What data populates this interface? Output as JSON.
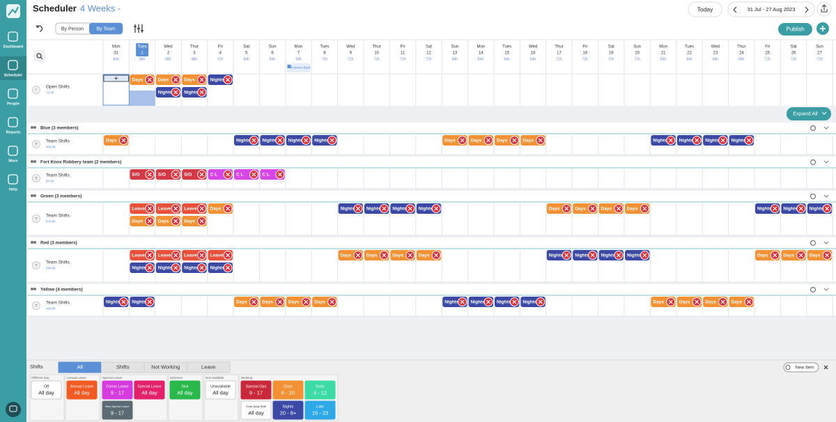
{
  "sidebar": [
    "Dashboard",
    "Scheduler",
    "People",
    "Reports",
    "More",
    "Help"
  ],
  "sidebar_active": 1,
  "header": {
    "title": "Scheduler",
    "view": "4 Weeks -",
    "today": "Today",
    "range": "31 Jul - 27 Aug 2023"
  },
  "toolbar": {
    "by_person": "By Person",
    "by_team": "By Team",
    "publish": "Publish"
  },
  "days": [
    {
      "weekday": "Mon",
      "date": 31,
      "hours": "84h"
    },
    {
      "weekday": "Tues",
      "date": 1,
      "hours": "88h",
      "today": true
    },
    {
      "weekday": "Wed",
      "date": 2,
      "hours": "88h"
    },
    {
      "weekday": "Thur",
      "date": 3,
      "hours": "88h"
    },
    {
      "weekday": "Fri",
      "date": 4,
      "hours": "72h"
    },
    {
      "weekday": "Sat",
      "date": 5,
      "hours": "84h"
    },
    {
      "weekday": "Sun",
      "date": 6,
      "hours": "84h"
    },
    {
      "weekday": "Mon",
      "date": 7,
      "hours": "84h",
      "holiday": "Summer Bank"
    },
    {
      "weekday": "Tues",
      "date": 8,
      "hours": "72h"
    },
    {
      "weekday": "Wed",
      "date": 9,
      "hours": "72h"
    },
    {
      "weekday": "Thur",
      "date": 10,
      "hours": "72h"
    },
    {
      "weekday": "Fri",
      "date": 11,
      "hours": "72h"
    },
    {
      "weekday": "Sat",
      "date": 12,
      "hours": "72h"
    },
    {
      "weekday": "Sun",
      "date": 13,
      "hours": "84h"
    },
    {
      "weekday": "Mon",
      "date": 14,
      "hours": "84h"
    },
    {
      "weekday": "Tues",
      "date": 15,
      "hours": "84h"
    },
    {
      "weekday": "Wed",
      "date": 16,
      "hours": "84h"
    },
    {
      "weekday": "Thur",
      "date": 17,
      "hours": "72h"
    },
    {
      "weekday": "Fri",
      "date": 18,
      "hours": "72h"
    },
    {
      "weekday": "Sat",
      "date": 19,
      "hours": "72h"
    },
    {
      "weekday": "Sun",
      "date": 20,
      "hours": "72h"
    },
    {
      "weekday": "Mon",
      "date": 21,
      "hours": "84h"
    },
    {
      "weekday": "Tues",
      "date": 22,
      "hours": "84h"
    },
    {
      "weekday": "Wed",
      "date": 23,
      "hours": "84h"
    },
    {
      "weekday": "Thur",
      "date": 24,
      "hours": "84h"
    },
    {
      "weekday": "Fri",
      "date": 25,
      "hours": "72h"
    },
    {
      "weekday": "Sat",
      "date": 26,
      "hours": "72h"
    },
    {
      "weekday": "Sun",
      "date": 27,
      "hours": "72h"
    }
  ],
  "shift_colors": {
    "Days": "#f39135",
    "Nights": "#3c4aa6",
    "Leave": "#e8503a",
    "S/O": "#d33a46",
    "C L": "#d845e6"
  },
  "open_shifts": {
    "initial": "!",
    "label": "Open Shifts",
    "hours": "72.0h",
    "rows": [
      [
        {
          "day": 1,
          "label": "Days"
        },
        {
          "day": 2,
          "label": "Days"
        },
        {
          "day": 3,
          "label": "Days"
        },
        {
          "day": 4,
          "label": "Nights"
        }
      ],
      [
        {
          "day": 2,
          "label": "Nights"
        },
        {
          "day": 3,
          "label": "Nights"
        }
      ]
    ]
  },
  "expand_all": "Expand All",
  "teams": [
    {
      "name": "Blue (3 members)",
      "initial": "T",
      "label": "Team Shifts",
      "hours": "408.0h",
      "rows": [
        [
          {
            "day": 0,
            "label": "Days"
          },
          {
            "day": 5,
            "label": "Nights"
          },
          {
            "day": 6,
            "label": "Nights"
          },
          {
            "day": 7,
            "label": "Nights"
          },
          {
            "day": 8,
            "label": "Nights"
          },
          {
            "day": 13,
            "label": "Days"
          },
          {
            "day": 14,
            "label": "Days"
          },
          {
            "day": 15,
            "label": "Days"
          },
          {
            "day": 16,
            "label": "Days"
          },
          {
            "day": 21,
            "label": "Nights"
          },
          {
            "day": 22,
            "label": "Nights"
          },
          {
            "day": 23,
            "label": "Nights"
          },
          {
            "day": 24,
            "label": "Nights"
          }
        ]
      ]
    },
    {
      "name": "Fort Knox Robbery team (2 members)",
      "initial": "T",
      "label": "Team Shifts",
      "hours": "90.0h",
      "rows": [
        [
          {
            "day": 1,
            "label": "S/O"
          },
          {
            "day": 2,
            "label": "S/O"
          },
          {
            "day": 3,
            "label": "S/O"
          },
          {
            "day": 4,
            "label": "C L"
          },
          {
            "day": 5,
            "label": "C L"
          },
          {
            "day": 6,
            "label": "C L"
          }
        ]
      ]
    },
    {
      "name": "Green (3 members)",
      "initial": "T",
      "label": "Team Shifts",
      "hours": "876.0h",
      "rows": [
        [
          {
            "day": 1,
            "label": "Leave"
          },
          {
            "day": 2,
            "label": "Leave"
          },
          {
            "day": 3,
            "label": "Leave"
          },
          {
            "day": 4,
            "label": "Days"
          },
          {
            "day": 9,
            "label": "Nights"
          },
          {
            "day": 10,
            "label": "Nights"
          },
          {
            "day": 11,
            "label": "Nights"
          },
          {
            "day": 12,
            "label": "Nights"
          },
          {
            "day": 17,
            "label": "Days"
          },
          {
            "day": 18,
            "label": "Days"
          },
          {
            "day": 19,
            "label": "Days"
          },
          {
            "day": 20,
            "label": "Days"
          },
          {
            "day": 25,
            "label": "Nights"
          },
          {
            "day": 26,
            "label": "Nights"
          },
          {
            "day": 27,
            "label": "Nights"
          }
        ],
        [
          {
            "day": 1,
            "label": "Days"
          },
          {
            "day": 2,
            "label": "Days"
          },
          {
            "day": 3,
            "label": "Days"
          }
        ]
      ]
    },
    {
      "name": "Red (3 members)",
      "initial": "T",
      "label": "Team Shifts",
      "hours": "588.0h",
      "rows": [
        [
          {
            "day": 1,
            "label": "Leave"
          },
          {
            "day": 2,
            "label": "Leave"
          },
          {
            "day": 3,
            "label": "Leave"
          },
          {
            "day": 4,
            "label": "Leave"
          },
          {
            "day": 9,
            "label": "Days"
          },
          {
            "day": 10,
            "label": "Days"
          },
          {
            "day": 11,
            "label": "Days"
          },
          {
            "day": 12,
            "label": "Days"
          },
          {
            "day": 17,
            "label": "Nights"
          },
          {
            "day": 18,
            "label": "Nights"
          },
          {
            "day": 19,
            "label": "Nights"
          },
          {
            "day": 20,
            "label": "Nights"
          },
          {
            "day": 25,
            "label": "Days"
          },
          {
            "day": 26,
            "label": "Days"
          },
          {
            "day": 27,
            "label": "Days"
          }
        ],
        [
          {
            "day": 1,
            "label": "Nights"
          },
          {
            "day": 2,
            "label": "Nights"
          },
          {
            "day": 3,
            "label": "Nights"
          },
          {
            "day": 4,
            "label": "Nights"
          }
        ]
      ]
    },
    {
      "name": "Yellow (4 members)",
      "initial": "T",
      "label": "Team Shifts",
      "hours": "456.0h",
      "rows": [
        [
          {
            "day": 0,
            "label": "Nights"
          },
          {
            "day": 1,
            "label": "Nights"
          },
          {
            "day": 5,
            "label": "Days"
          },
          {
            "day": 6,
            "label": "Days"
          },
          {
            "day": 7,
            "label": "Days"
          },
          {
            "day": 8,
            "label": "Days"
          },
          {
            "day": 13,
            "label": "Nights"
          },
          {
            "day": 14,
            "label": "Nights"
          },
          {
            "day": 15,
            "label": "Nights"
          },
          {
            "day": 16,
            "label": "Nights"
          },
          {
            "day": 21,
            "label": "Days"
          },
          {
            "day": 22,
            "label": "Days"
          },
          {
            "day": 23,
            "label": "Days"
          },
          {
            "day": 24,
            "label": "Days"
          }
        ]
      ]
    }
  ],
  "palette": {
    "title": "Shifts",
    "tabs": [
      "All",
      "Shifts",
      "Not Working",
      "Leave"
    ],
    "active_tab": 0,
    "new_item": "New Item",
    "groups": [
      {
        "name": "Off/Rest Day",
        "items": [
          {
            "name": "Off",
            "time": "All day",
            "color": "#ffffff"
          }
        ]
      },
      {
        "name": "Annual Leave",
        "items": [
          {
            "name": "Annual Leave",
            "time": "All day",
            "color": "#f25a24"
          }
        ]
      },
      {
        "name": "Special Leave",
        "items": [
          {
            "name": "Convo Leave",
            "time": "9 - 17",
            "color": "#d63be0"
          },
          {
            "name": "Special Leave",
            "time": "All day",
            "color": "#e5206b"
          },
          {
            "name": "Bow Special Leave",
            "time": "9 - 17",
            "color": "#5a6b73"
          }
        ]
      },
      {
        "name": "Sickness",
        "items": [
          {
            "name": "Sick",
            "time": "All day",
            "color": "#2ab84a"
          }
        ]
      },
      {
        "name": "Not Available",
        "items": [
          {
            "name": "Unavailable",
            "time": "All day",
            "color": "#ffffff"
          }
        ]
      },
      {
        "name": "Working",
        "items": [
          {
            "name": "Special Ops",
            "time": "9 - 17",
            "color": "#c8283a"
          },
          {
            "name": "Days",
            "time": "8 - 20",
            "color": "#f39135"
          },
          {
            "name": "Early",
            "time": "4 - 12",
            "color": "#3ddba5"
          },
          {
            "name": "Crab Quay Shift",
            "time": "All day",
            "color": "#ffffff"
          },
          {
            "name": "Nights",
            "time": "20 - 8+",
            "color": "#3c4aa6"
          },
          {
            "name": "Late",
            "time": "15 - 23",
            "color": "#2fa8e8"
          }
        ]
      }
    ]
  }
}
